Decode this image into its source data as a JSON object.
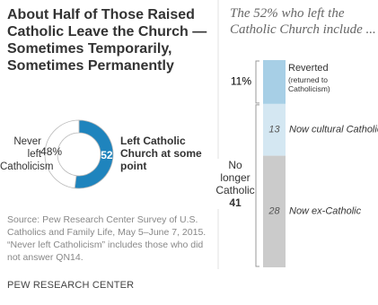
{
  "title": "About Half of Those Raised Catholic Leave the Church — Sometimes Temporarily, Sometimes Permanently",
  "source": "Source: Pew Research Center Survey of U.S. Catholics and Family Life, May 5–June 7, 2015. “Never left Catholicism” includes those who did not answer QN14.",
  "footer": "PEW RESEARCH CENTER",
  "chart_data": [
    {
      "type": "donut",
      "categories": [
        "Left Catholic Church at some point",
        "Never left Catholicism"
      ],
      "values": [
        52,
        48
      ],
      "value_labels": [
        "52",
        "48%"
      ],
      "colors": [
        "#1f84bd",
        "#ffffff"
      ]
    },
    {
      "type": "stacked_bar",
      "title": "The 52% who left the Catholic Church include ...",
      "series": [
        {
          "name": "Reverted",
          "note": "(returned to Catholicism)",
          "color": "#a7cfe6",
          "values": [
            11
          ],
          "value_labels": [
            "11%"
          ],
          "label_position": "left"
        },
        {
          "name": "Now cultural Catholic",
          "color": "#d4e7f2",
          "values": [
            13
          ],
          "label_position": "inside"
        },
        {
          "name": "Now ex-Catholic",
          "color": "#cbcbcb",
          "values": [
            28
          ],
          "label_position": "inside"
        }
      ],
      "group_label": "No longer Catholic",
      "group_value": 41
    }
  ]
}
